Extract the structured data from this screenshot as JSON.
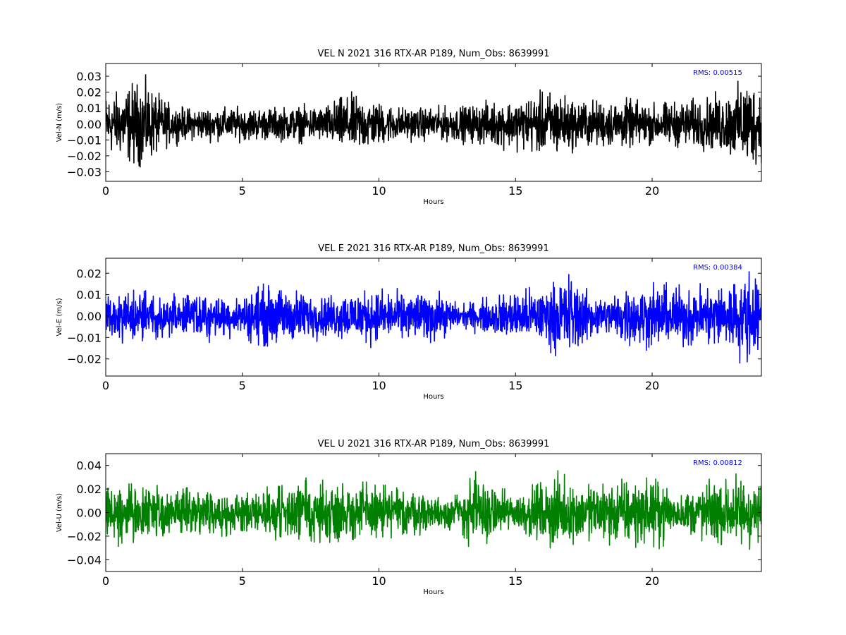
{
  "chart_data": [
    {
      "type": "line",
      "title": "VEL N 2021 316 RTX-AR  P189, Num_Obs: 8639991",
      "xlabel": "Hours",
      "ylabel": "Vel-N (m/s)",
      "xlim": [
        0,
        24
      ],
      "ylim": [
        -0.036,
        0.038
      ],
      "xticks": [
        0,
        5,
        10,
        15,
        20
      ],
      "xtick_labels": [
        "0",
        "5",
        "10",
        "15",
        "20"
      ],
      "yticks": [
        -0.03,
        -0.02,
        -0.01,
        0.0,
        0.01,
        0.02,
        0.03
      ],
      "ytick_labels": [
        "−0.03",
        "−0.02",
        "−0.01",
        "0.00",
        "0.01",
        "0.02",
        "0.03"
      ],
      "annotation": "RMS:  0.00515",
      "annotation_color": "#0000ff",
      "grid": false,
      "series": [
        {
          "color": "#000000",
          "envelope_hours": [
            0,
            0.5,
            1.0,
            1.5,
            2.0,
            2.5,
            3,
            4,
            5,
            6,
            7,
            8,
            8.5,
            9,
            9.5,
            10,
            11,
            12,
            13,
            14,
            15,
            16,
            16.5,
            17,
            18,
            19,
            20,
            21,
            22,
            23,
            23.5,
            24
          ],
          "envelope_amplitude": [
            0.022,
            0.024,
            0.031,
            0.03,
            0.02,
            0.013,
            0.012,
            0.012,
            0.012,
            0.012,
            0.013,
            0.013,
            0.019,
            0.021,
            0.02,
            0.016,
            0.012,
            0.012,
            0.013,
            0.016,
            0.018,
            0.023,
            0.025,
            0.019,
            0.017,
            0.018,
            0.015,
            0.017,
            0.019,
            0.025,
            0.035,
            0.026
          ]
        }
      ]
    },
    {
      "type": "line",
      "title": "VEL E 2021 316 RTX-AR  P189, Num_Obs: 8639991",
      "xlabel": "Hours",
      "ylabel": "Vel-E (m/s)",
      "xlim": [
        0,
        24
      ],
      "ylim": [
        -0.028,
        0.027
      ],
      "xticks": [
        0,
        5,
        10,
        15,
        20
      ],
      "xtick_labels": [
        "0",
        "5",
        "10",
        "15",
        "20"
      ],
      "yticks": [
        -0.02,
        -0.01,
        0.0,
        0.01,
        0.02
      ],
      "ytick_labels": [
        "−0.02",
        "−0.01",
        "0.00",
        "0.01",
        "0.02"
      ],
      "annotation": "RMS:  0.00384",
      "annotation_color": "#0000ff",
      "grid": false,
      "series": [
        {
          "color": "#0000ff",
          "envelope_hours": [
            0,
            1,
            2,
            3,
            4,
            5,
            5.5,
            6,
            7,
            8,
            9,
            10,
            11,
            12,
            12.5,
            13,
            14,
            15,
            16,
            16.5,
            17,
            17.5,
            18,
            18.5,
            19,
            20,
            21,
            22,
            23,
            23.5,
            24
          ],
          "envelope_amplitude": [
            0.011,
            0.013,
            0.013,
            0.013,
            0.012,
            0.01,
            0.017,
            0.016,
            0.014,
            0.011,
            0.014,
            0.014,
            0.012,
            0.014,
            0.01,
            0.006,
            0.01,
            0.014,
            0.015,
            0.019,
            0.024,
            0.015,
            0.011,
            0.011,
            0.016,
            0.017,
            0.016,
            0.017,
            0.02,
            0.025,
            0.018
          ]
        }
      ]
    },
    {
      "type": "line",
      "title": "VEL U 2021 316 RTX-AR  P189, Num_Obs: 8639991",
      "xlabel": "Hours",
      "ylabel": "Vel-U (m/s)",
      "xlim": [
        0,
        24
      ],
      "ylim": [
        -0.05,
        0.05
      ],
      "xticks": [
        0,
        5,
        10,
        15,
        20
      ],
      "xtick_labels": [
        "0",
        "5",
        "10",
        "15",
        "20"
      ],
      "yticks": [
        -0.04,
        -0.02,
        0.0,
        0.02,
        0.04
      ],
      "ytick_labels": [
        "−0.04",
        "−0.02",
        "0.00",
        "0.02",
        "0.04"
      ],
      "annotation": "RMS:  0.00812",
      "annotation_color": "#0000ff",
      "grid": false,
      "series": [
        {
          "color": "#008000",
          "envelope_hours": [
            0,
            1,
            2,
            3,
            4,
            5,
            6,
            7,
            7.5,
            8,
            9,
            10,
            11,
            12,
            13,
            13.5,
            14,
            15,
            16,
            16.5,
            17,
            18,
            19,
            20,
            20.5,
            21,
            22,
            23,
            23.5,
            24
          ],
          "envelope_amplitude": [
            0.026,
            0.028,
            0.026,
            0.024,
            0.022,
            0.019,
            0.027,
            0.03,
            0.036,
            0.03,
            0.03,
            0.028,
            0.024,
            0.016,
            0.022,
            0.04,
            0.026,
            0.018,
            0.03,
            0.036,
            0.028,
            0.03,
            0.034,
            0.032,
            0.028,
            0.018,
            0.03,
            0.034,
            0.04,
            0.025
          ]
        }
      ]
    }
  ]
}
